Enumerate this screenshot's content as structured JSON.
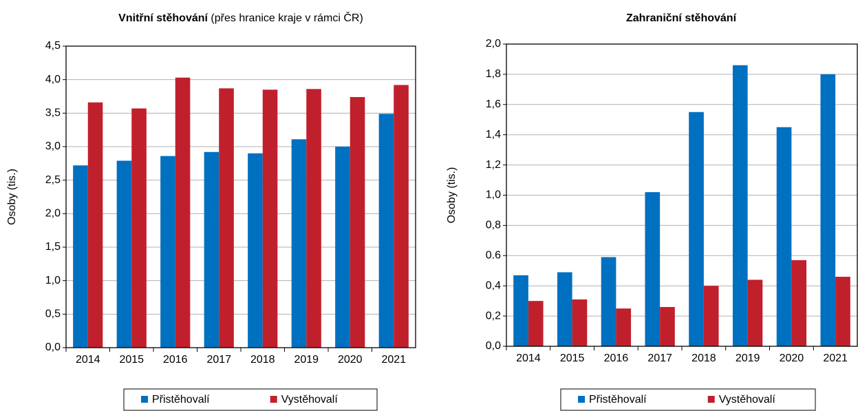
{
  "chart_data": [
    {
      "type": "bar",
      "title": "Vnitřní stěhování",
      "subtitle": "(přes hranice kraje v rámci ČR)",
      "y_label": "Osoby (tis.)",
      "categories": [
        "2014",
        "2015",
        "2016",
        "2017",
        "2018",
        "2019",
        "2020",
        "2021"
      ],
      "series": [
        {
          "name": "Přistěhovalí",
          "color": "#0070c0",
          "values": [
            2.72,
            2.79,
            2.86,
            2.92,
            2.9,
            3.11,
            3.0,
            3.49
          ]
        },
        {
          "name": "Vystěhovalí",
          "color": "#c0202c",
          "values": [
            3.66,
            3.57,
            4.03,
            3.87,
            3.85,
            3.86,
            3.74,
            3.92
          ]
        }
      ],
      "ylim": [
        0,
        4.5
      ],
      "yticks": [
        {
          "value": 0,
          "label": "0,0"
        },
        {
          "value": 0.5,
          "label": "0,5"
        },
        {
          "value": 1,
          "label": "1,0"
        },
        {
          "value": 1.5,
          "label": "1,5"
        },
        {
          "value": 2,
          "label": "2,0"
        },
        {
          "value": 2.5,
          "label": "2,5"
        },
        {
          "value": 3,
          "label": "3,0"
        },
        {
          "value": 3.5,
          "label": "3,5"
        },
        {
          "value": 4,
          "label": "4,0"
        },
        {
          "value": 4.5,
          "label": "4,5"
        }
      ],
      "grid": true,
      "legend": "bottom"
    },
    {
      "type": "bar",
      "title": "Zahraniční stěhování",
      "y_label": "Osoby (tis.)",
      "categories": [
        "2014",
        "2015",
        "2016",
        "2017",
        "2018",
        "2019",
        "2020",
        "2021"
      ],
      "series": [
        {
          "name": "Přistěhovalí",
          "color": "#0070c0",
          "values": [
            0.47,
            0.49,
            0.59,
            1.02,
            1.55,
            1.86,
            1.45,
            1.8
          ]
        },
        {
          "name": "Vystěhovalí",
          "color": "#c0202c",
          "values": [
            0.3,
            0.31,
            0.25,
            0.26,
            0.4,
            0.44,
            0.57,
            0.46
          ]
        }
      ],
      "ylim": [
        0,
        2
      ],
      "yticks": [
        {
          "value": 0,
          "label": "0,0"
        },
        {
          "value": 0.2,
          "label": "0,2"
        },
        {
          "value": 0.4,
          "label": "0,4"
        },
        {
          "value": 0.6,
          "label": "0.6"
        },
        {
          "value": 0.8,
          "label": "0,8"
        },
        {
          "value": 1,
          "label": "1,0"
        },
        {
          "value": 1.2,
          "label": "1,2"
        },
        {
          "value": 1.4,
          "label": "1,4"
        },
        {
          "value": 1.6,
          "label": "1,6"
        },
        {
          "value": 1.8,
          "label": "1,8"
        },
        {
          "value": 2,
          "label": "2,0"
        }
      ],
      "grid": true,
      "legend": "bottom"
    }
  ]
}
